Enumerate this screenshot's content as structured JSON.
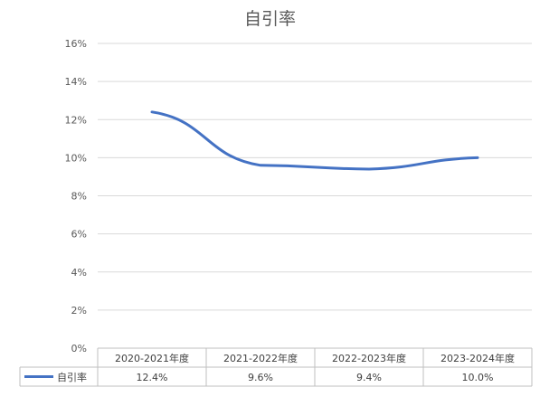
{
  "chart_data": {
    "type": "line",
    "title": "自引率",
    "categories": [
      "2020-2021年度",
      "2021-2022年度",
      "2022-2023年度",
      "2023-2024年度"
    ],
    "series": [
      {
        "name": "自引率",
        "values": [
          12.4,
          9.6,
          9.4,
          10.0
        ],
        "labels": [
          "12.4%",
          "9.6%",
          "9.4%",
          "10.0%"
        ]
      }
    ],
    "ylim": [
      0,
      16
    ],
    "yticks": [
      "0%",
      "2%",
      "4%",
      "6%",
      "8%",
      "10%",
      "12%",
      "14%",
      "16%"
    ],
    "ytick_values": [
      0,
      2,
      4,
      6,
      8,
      10,
      12,
      14,
      16
    ],
    "grid": true,
    "legend": "data-table",
    "line_color": "#4472C4"
  }
}
